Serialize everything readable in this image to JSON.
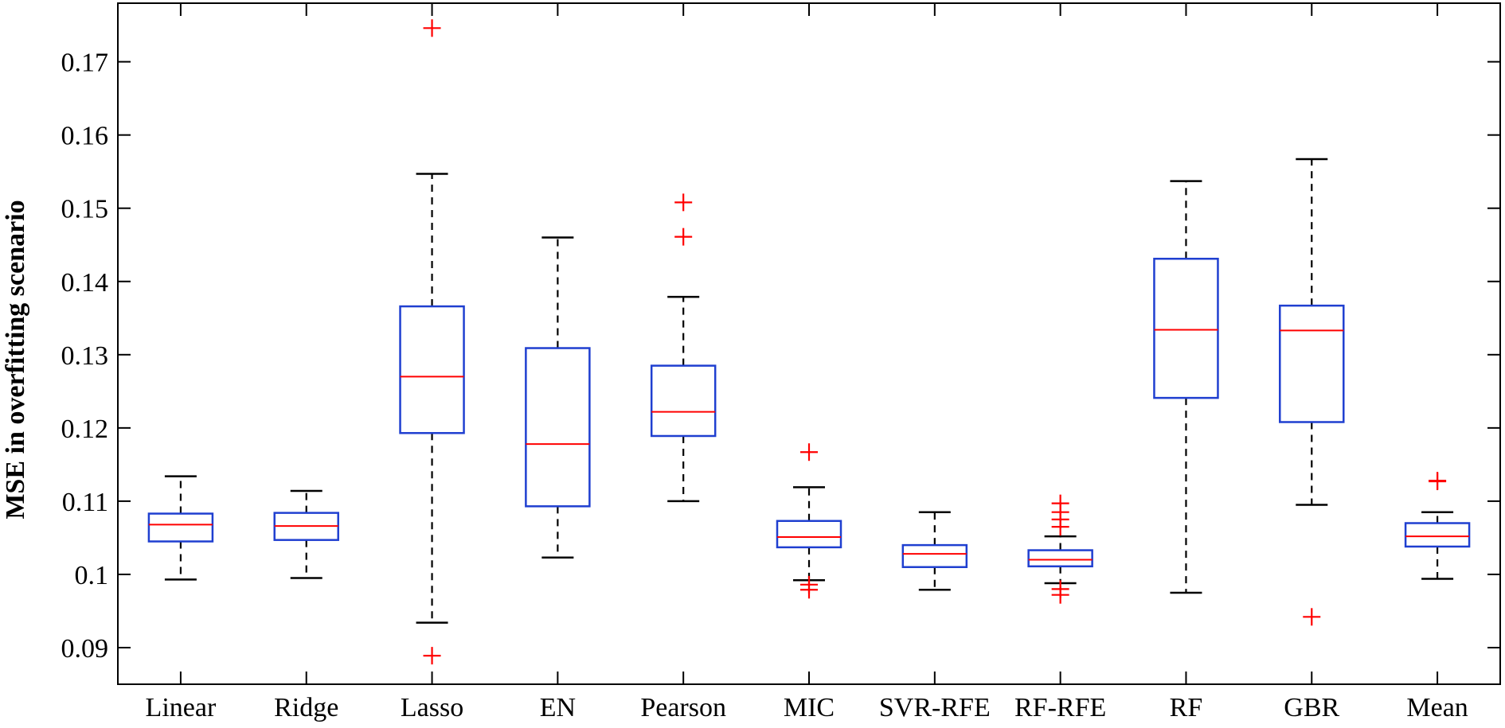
{
  "chart_data": {
    "type": "box",
    "title": "",
    "xlabel": "",
    "ylabel": "MSE in overfitting scenario",
    "ylim": [
      0.085,
      0.178
    ],
    "yticks": [
      0.09,
      0.1,
      0.11,
      0.12,
      0.13,
      0.14,
      0.15,
      0.16,
      0.17
    ],
    "ytick_labels": [
      "0.09",
      "0.1",
      "0.11",
      "0.12",
      "0.13",
      "0.14",
      "0.15",
      "0.16",
      "0.17"
    ],
    "grid": false,
    "box_color": "#1f3fd0",
    "median_color": "#ff0000",
    "outlier_color": "#ff0000",
    "whisker_color": "#000000",
    "categories": [
      "Linear",
      "Ridge",
      "Lasso",
      "EN",
      "Pearson",
      "MIC",
      "SVR-RFE",
      "RF-RFE",
      "RF",
      "GBR",
      "Mean"
    ],
    "boxes": [
      {
        "whisker_low": 0.0993,
        "q1": 0.1045,
        "median": 0.1068,
        "q3": 0.1083,
        "whisker_high": 0.1134,
        "outliers": []
      },
      {
        "whisker_low": 0.0995,
        "q1": 0.1047,
        "median": 0.1066,
        "q3": 0.1084,
        "whisker_high": 0.1114,
        "outliers": []
      },
      {
        "whisker_low": 0.0934,
        "q1": 0.1193,
        "median": 0.127,
        "q3": 0.1366,
        "whisker_high": 0.1547,
        "outliers": [
          0.1746,
          0.0889
        ]
      },
      {
        "whisker_low": 0.1023,
        "q1": 0.1093,
        "median": 0.1178,
        "q3": 0.1309,
        "whisker_high": 0.146,
        "outliers": []
      },
      {
        "whisker_low": 0.11,
        "q1": 0.1189,
        "median": 0.1222,
        "q3": 0.1285,
        "whisker_high": 0.1379,
        "outliers": [
          0.1508,
          0.1461
        ]
      },
      {
        "whisker_low": 0.0992,
        "q1": 0.1037,
        "median": 0.1051,
        "q3": 0.1073,
        "whisker_high": 0.1119,
        "outliers": [
          0.1167,
          0.0986,
          0.0979
        ]
      },
      {
        "whisker_low": 0.0979,
        "q1": 0.101,
        "median": 0.1028,
        "q3": 0.104,
        "whisker_high": 0.1085,
        "outliers": []
      },
      {
        "whisker_low": 0.0988,
        "q1": 0.1011,
        "median": 0.102,
        "q3": 0.1033,
        "whisker_high": 0.1052,
        "outliers": [
          0.1097,
          0.1085,
          0.1075,
          0.1065,
          0.098,
          0.0972
        ]
      },
      {
        "whisker_low": 0.0975,
        "q1": 0.1241,
        "median": 0.1334,
        "q3": 0.1431,
        "whisker_high": 0.1537,
        "outliers": []
      },
      {
        "whisker_low": 0.1095,
        "q1": 0.1208,
        "median": 0.1333,
        "q3": 0.1367,
        "whisker_high": 0.1567,
        "outliers": [
          0.0942
        ]
      },
      {
        "whisker_low": 0.0994,
        "q1": 0.1038,
        "median": 0.1052,
        "q3": 0.107,
        "whisker_high": 0.1085,
        "outliers": [
          0.1128,
          0.1127
        ]
      }
    ]
  }
}
